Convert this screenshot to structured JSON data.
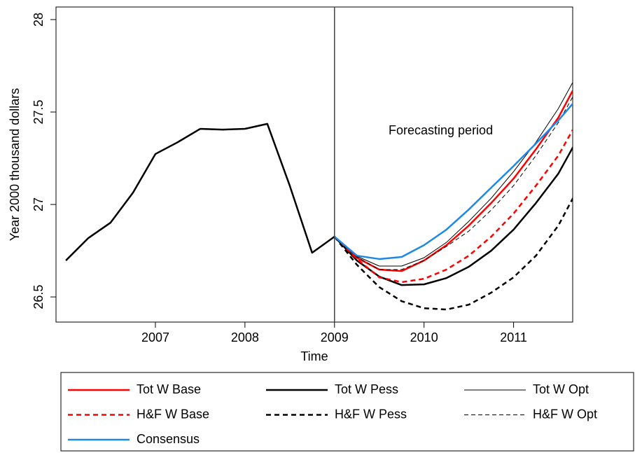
{
  "chart_data": {
    "type": "line",
    "annotation": "Forecasting period",
    "xlabel": "Time",
    "ylabel": "Year 2000 thousand dollars",
    "vline": 2009,
    "x": [
      2006,
      2006.25,
      2006.5,
      2006.75,
      2007,
      2007.25,
      2007.5,
      2007.75,
      2008,
      2008.25,
      2008.5,
      2008.75,
      2009,
      2009.25,
      2009.5,
      2009.75,
      2010,
      2010.25,
      2010.5,
      2010.75,
      2011,
      2011.25,
      2011.5,
      2011.75
    ],
    "series": [
      {
        "color": "#000000",
        "style": "solid",
        "width": 2.5,
        "values": [
          26.697,
          26.818,
          26.902,
          27.064,
          27.273,
          27.337,
          27.409,
          27.405,
          27.409,
          27.436,
          27.102,
          26.739,
          26.826,
          null,
          null,
          null,
          null,
          null,
          null,
          null,
          null,
          null,
          null,
          null
        ]
      },
      {
        "name": "Tot W Base",
        "color": "#ff0000",
        "style": "solid",
        "width": 2.5,
        "values": [
          null,
          null,
          null,
          null,
          null,
          null,
          null,
          null,
          null,
          null,
          null,
          null,
          26.826,
          26.712,
          26.648,
          26.64,
          26.697,
          26.78,
          26.886,
          27.008,
          27.14,
          27.299,
          27.47,
          27.697
        ]
      },
      {
        "name": "Tot W Pess",
        "color": "#000000",
        "style": "solid",
        "width": 2.5,
        "values": [
          null,
          null,
          null,
          null,
          null,
          null,
          null,
          null,
          null,
          null,
          null,
          null,
          26.826,
          26.697,
          26.61,
          26.564,
          26.568,
          26.602,
          26.663,
          26.75,
          26.864,
          27.008,
          27.167,
          27.386
        ]
      },
      {
        "name": "Tot W Opt",
        "color": "#000000",
        "style": "solid",
        "width": 1,
        "values": [
          null,
          null,
          null,
          null,
          null,
          null,
          null,
          null,
          null,
          null,
          null,
          null,
          26.826,
          26.72,
          26.667,
          26.667,
          26.712,
          26.795,
          26.909,
          27.034,
          27.178,
          27.337,
          27.519,
          27.739
        ]
      },
      {
        "name": "H&F W Base",
        "color": "#ff0000",
        "style": "dashed",
        "width": 2.5,
        "values": [
          null,
          null,
          null,
          null,
          null,
          null,
          null,
          null,
          null,
          null,
          null,
          null,
          26.826,
          26.705,
          26.606,
          26.58,
          26.598,
          26.648,
          26.723,
          26.826,
          26.951,
          27.102,
          27.265,
          27.481
        ]
      },
      {
        "name": "H&F W Pess",
        "color": "#000000",
        "style": "dashed",
        "width": 2.5,
        "values": [
          null,
          null,
          null,
          null,
          null,
          null,
          null,
          null,
          null,
          null,
          null,
          null,
          26.826,
          26.674,
          26.553,
          26.477,
          26.439,
          26.432,
          26.458,
          26.523,
          26.606,
          26.723,
          26.886,
          27.114
        ]
      },
      {
        "name": "H&F W Opt",
        "color": "#000000",
        "style": "dashed",
        "width": 1,
        "values": [
          null,
          null,
          null,
          null,
          null,
          null,
          null,
          null,
          null,
          null,
          null,
          null,
          26.826,
          26.716,
          26.648,
          26.648,
          26.697,
          26.773,
          26.856,
          26.97,
          27.102,
          27.265,
          27.443,
          27.659
        ]
      },
      {
        "name": "Consensus",
        "color": "#1e88e5",
        "style": "solid",
        "width": 2.5,
        "values": [
          null,
          null,
          null,
          null,
          null,
          null,
          null,
          null,
          null,
          null,
          null,
          null,
          26.826,
          26.723,
          26.705,
          26.716,
          26.78,
          26.864,
          26.973,
          27.091,
          27.208,
          27.33,
          27.455,
          27.595
        ]
      }
    ],
    "xlim": [
      2005.89,
      2011.66
    ],
    "xticks": [
      2007,
      2008,
      2009,
      2010,
      2011
    ],
    "ylim": [
      26.364,
      28.068
    ],
    "yticks": [
      26.5,
      27,
      27.5,
      28
    ]
  }
}
